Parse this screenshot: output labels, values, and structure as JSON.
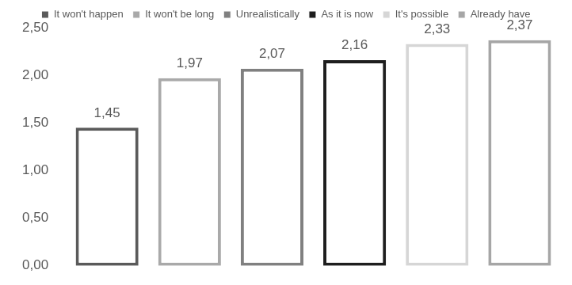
{
  "chart_data": {
    "type": "bar",
    "categories": [
      "It won't happen",
      "It won't be long",
      "Unrealistically",
      "As it is now",
      "It's possible",
      "Already have"
    ],
    "values": [
      1.45,
      1.97,
      2.07,
      2.16,
      2.33,
      2.37
    ],
    "value_labels": [
      "1,45",
      "1,97",
      "2,07",
      "2,16",
      "2,33",
      "2,37"
    ],
    "colors": [
      "#5a5a5a",
      "#a9a9a9",
      "#808080",
      "#1e1e1e",
      "#d6d6d6",
      "#a6a6a6"
    ],
    "ylim": [
      0,
      2.5
    ],
    "yticks": [
      {
        "value": 0,
        "label": "0,00"
      },
      {
        "value": 0.5,
        "label": "0,50"
      },
      {
        "value": 1,
        "label": "1,00"
      },
      {
        "value": 1.5,
        "label": "1,50"
      },
      {
        "value": 2,
        "label": "2,00"
      },
      {
        "value": 2.5,
        "label": "2,50"
      }
    ],
    "grid": false,
    "legend": "top",
    "data_labels": true,
    "tick_labels": "y"
  }
}
